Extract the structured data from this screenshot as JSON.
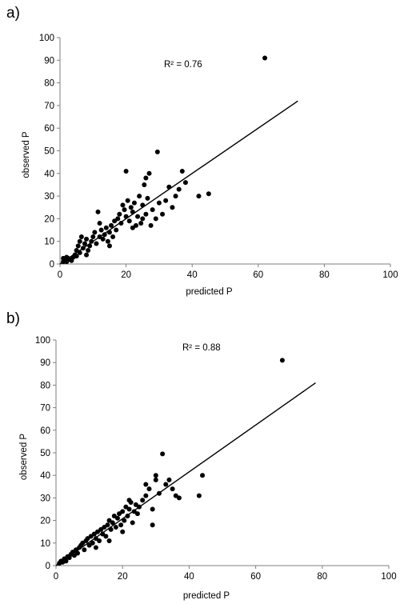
{
  "chart_data": [
    {
      "panel_label": "a)",
      "type": "scatter",
      "xlabel": "predicted P",
      "ylabel": "observed P",
      "xlim": [
        0,
        100
      ],
      "ylim": [
        0,
        100
      ],
      "x_ticks": [
        0,
        20,
        40,
        60,
        80,
        100
      ],
      "y_ticks": [
        0,
        10,
        20,
        30,
        40,
        50,
        60,
        70,
        80,
        90,
        100
      ],
      "grid": false,
      "annotation": "R² = 0.76",
      "regression_line": {
        "x": [
          0,
          72
        ],
        "y": [
          0,
          72
        ]
      },
      "points": [
        [
          1,
          1
        ],
        [
          1.5,
          2
        ],
        [
          2,
          1
        ],
        [
          2.5,
          2.5
        ],
        [
          3,
          2
        ],
        [
          2,
          3
        ],
        [
          3.5,
          1.5
        ],
        [
          1,
          2.5
        ],
        [
          4,
          3
        ],
        [
          4.5,
          4
        ],
        [
          5,
          3.5
        ],
        [
          5,
          6
        ],
        [
          6,
          5
        ],
        [
          5.5,
          8
        ],
        [
          6,
          10
        ],
        [
          6.5,
          12
        ],
        [
          7,
          7
        ],
        [
          7.5,
          9
        ],
        [
          8,
          11
        ],
        [
          8.5,
          6
        ],
        [
          9,
          8
        ],
        [
          9.5,
          10
        ],
        [
          10,
          12
        ],
        [
          10.5,
          14
        ],
        [
          11,
          9
        ],
        [
          11.5,
          23
        ],
        [
          12,
          12
        ],
        [
          12.5,
          15
        ],
        [
          13,
          11
        ],
        [
          13.5,
          13
        ],
        [
          14,
          16
        ],
        [
          14.5,
          10
        ],
        [
          15,
          14
        ],
        [
          15.5,
          17
        ],
        [
          16,
          12
        ],
        [
          16.5,
          19
        ],
        [
          17,
          15
        ],
        [
          17.5,
          20
        ],
        [
          18,
          22
        ],
        [
          18.5,
          18
        ],
        [
          19,
          26
        ],
        [
          19.5,
          24
        ],
        [
          20,
          21
        ],
        [
          20.5,
          28
        ],
        [
          21,
          19
        ],
        [
          21.5,
          25
        ],
        [
          22,
          23
        ],
        [
          22.5,
          27
        ],
        [
          23,
          17
        ],
        [
          23.5,
          21
        ],
        [
          24,
          30
        ],
        [
          24.5,
          18
        ],
        [
          25,
          26
        ],
        [
          25.5,
          35
        ],
        [
          26,
          22
        ],
        [
          26.5,
          29
        ],
        [
          27,
          40
        ],
        [
          27.5,
          17
        ],
        [
          28,
          24
        ],
        [
          29,
          20
        ],
        [
          29.5,
          49.5
        ],
        [
          30,
          27
        ],
        [
          31,
          22
        ],
        [
          32,
          28
        ],
        [
          33,
          34
        ],
        [
          34,
          25
        ],
        [
          35,
          30
        ],
        [
          36,
          33
        ],
        [
          37,
          41
        ],
        [
          38,
          36
        ],
        [
          42,
          30
        ],
        [
          45,
          31
        ],
        [
          20,
          41
        ],
        [
          22,
          16
        ],
        [
          25,
          20
        ],
        [
          26,
          38
        ],
        [
          15,
          8
        ],
        [
          12,
          18
        ],
        [
          8,
          4
        ],
        [
          62,
          91
        ]
      ]
    },
    {
      "panel_label": "b)",
      "type": "scatter",
      "xlabel": "predicted P",
      "ylabel": "observed P",
      "xlim": [
        0,
        100
      ],
      "ylim": [
        0,
        100
      ],
      "x_ticks": [
        0,
        20,
        40,
        60,
        80,
        100
      ],
      "y_ticks": [
        0,
        10,
        20,
        30,
        40,
        50,
        60,
        70,
        80,
        90,
        100
      ],
      "grid": false,
      "annotation": "R² = 0.88",
      "regression_line": {
        "x": [
          0,
          78
        ],
        "y": [
          0,
          81
        ]
      },
      "points": [
        [
          1,
          1
        ],
        [
          1.5,
          2
        ],
        [
          2,
          1.5
        ],
        [
          2.5,
          3
        ],
        [
          3,
          2
        ],
        [
          3.5,
          4
        ],
        [
          4,
          3.5
        ],
        [
          4.5,
          5
        ],
        [
          5,
          6
        ],
        [
          5.5,
          4.5
        ],
        [
          6,
          7
        ],
        [
          6.5,
          5.5
        ],
        [
          7,
          8
        ],
        [
          7.5,
          9
        ],
        [
          8,
          10
        ],
        [
          8.5,
          7
        ],
        [
          9,
          11
        ],
        [
          9.5,
          12
        ],
        [
          10,
          9
        ],
        [
          10.5,
          13
        ],
        [
          11,
          10
        ],
        [
          11.5,
          14
        ],
        [
          12,
          12
        ],
        [
          12.5,
          15
        ],
        [
          13,
          11
        ],
        [
          13.5,
          16
        ],
        [
          14,
          14
        ],
        [
          14.5,
          17
        ],
        [
          15,
          13
        ],
        [
          15.5,
          18
        ],
        [
          16,
          20
        ],
        [
          16.5,
          16
        ],
        [
          17,
          19
        ],
        [
          17.5,
          22
        ],
        [
          18,
          17
        ],
        [
          18.5,
          21
        ],
        [
          19,
          23
        ],
        [
          19.5,
          18
        ],
        [
          20,
          24
        ],
        [
          20.5,
          20
        ],
        [
          21,
          26
        ],
        [
          21.5,
          22
        ],
        [
          22,
          25
        ],
        [
          22.5,
          28
        ],
        [
          23,
          19
        ],
        [
          23.5,
          24
        ],
        [
          24,
          27
        ],
        [
          24.5,
          23
        ],
        [
          25,
          26
        ],
        [
          26,
          29
        ],
        [
          27,
          31
        ],
        [
          28,
          34
        ],
        [
          29,
          25
        ],
        [
          30,
          40
        ],
        [
          31,
          32
        ],
        [
          32,
          49.5
        ],
        [
          33,
          36
        ],
        [
          34,
          38
        ],
        [
          35,
          34
        ],
        [
          36,
          31
        ],
        [
          37,
          30
        ],
        [
          43,
          31
        ],
        [
          44,
          40
        ],
        [
          29,
          18
        ],
        [
          20,
          15
        ],
        [
          16,
          11
        ],
        [
          12,
          8
        ],
        [
          22,
          29
        ],
        [
          27,
          36
        ],
        [
          30,
          38
        ],
        [
          68,
          91
        ]
      ]
    }
  ]
}
